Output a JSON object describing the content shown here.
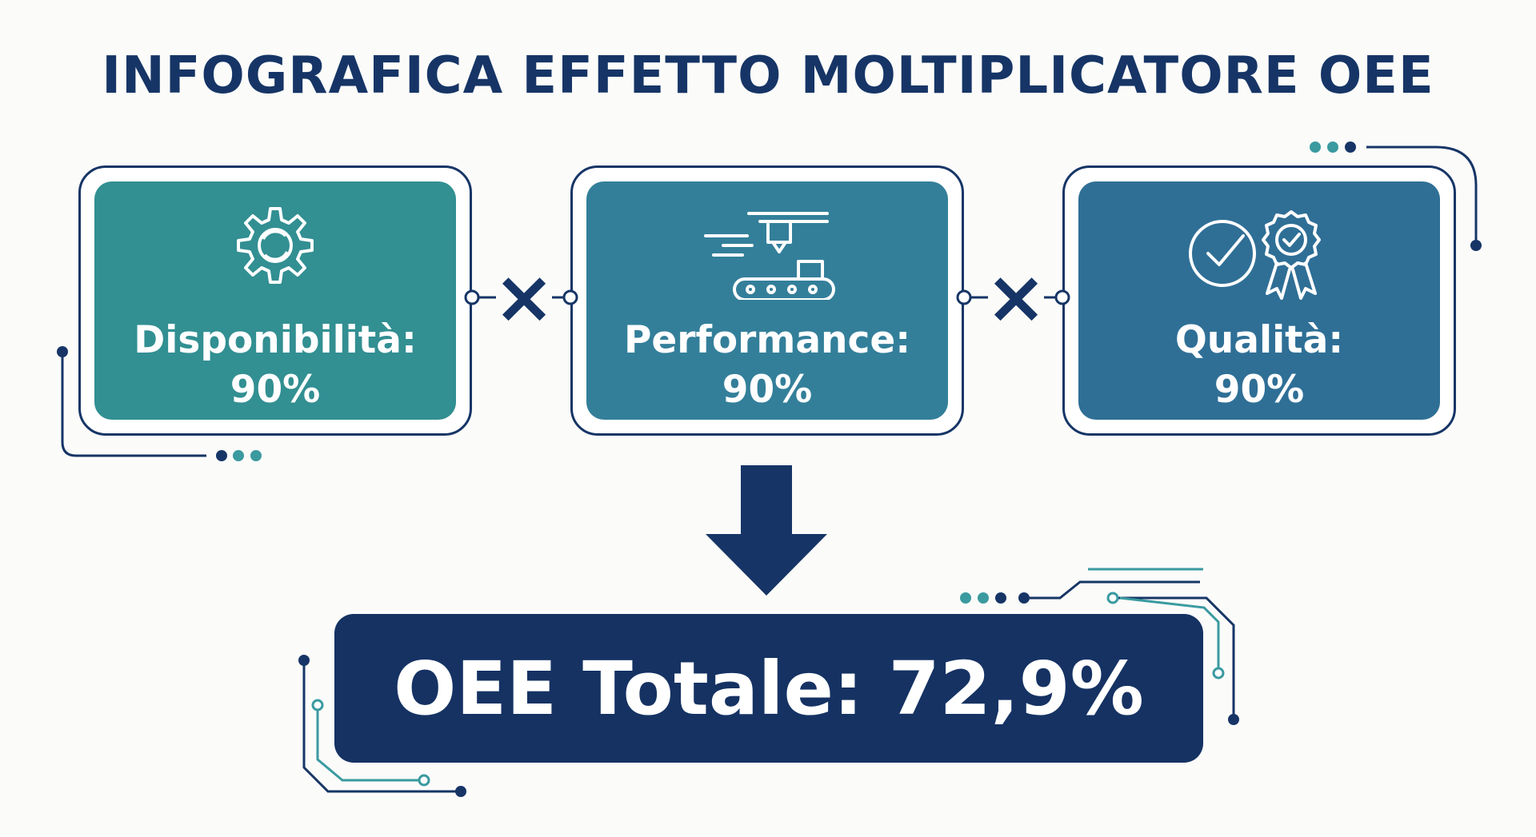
{
  "title": "INFOGRAFICA EFFETTO MOLTIPLICATORE OEE",
  "colors": {
    "navy": "#163566",
    "teal": "#328f92",
    "teal_blue": "#337f9a",
    "steel_blue": "#2f6f96",
    "accent_teal": "#3a9aa0"
  },
  "factors": [
    {
      "label": "Disponibilità:",
      "value": "90%",
      "icon": "gear-icon"
    },
    {
      "label": "Performance:",
      "value": "90%",
      "icon": "conveyor-icon"
    },
    {
      "label": "Qualità:",
      "value": "90%",
      "icon": "quality-check-badge-icon"
    }
  ],
  "operators": [
    "×",
    "×"
  ],
  "result": {
    "text": "OEE Totale: 72,9%"
  }
}
